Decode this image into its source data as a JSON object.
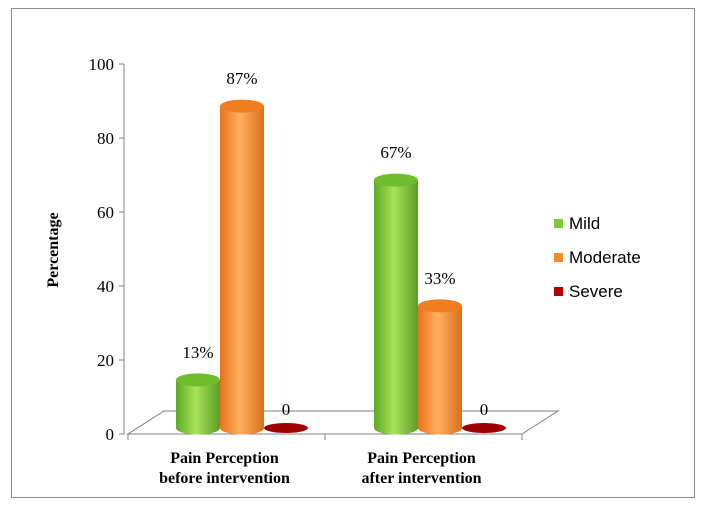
{
  "chart_data": {
    "type": "bar",
    "title": "",
    "xlabel": "",
    "ylabel": "Percentage",
    "ylim": [
      0,
      100
    ],
    "yticks": [
      0,
      20,
      40,
      60,
      80,
      100
    ],
    "categories": [
      [
        "Pain Perception",
        "before intervention"
      ],
      [
        "Pain Perception",
        "after intervention"
      ]
    ],
    "series": [
      {
        "name": "Mild",
        "color": "#7ec93c",
        "values": [
          13,
          67
        ],
        "labels": [
          "13%",
          "67%"
        ]
      },
      {
        "name": "Moderate",
        "color": "#f58a2a",
        "values": [
          87,
          33
        ],
        "labels": [
          "87%",
          "33%"
        ]
      },
      {
        "name": "Severe",
        "color": "#b40000",
        "values": [
          0,
          0
        ],
        "labels": [
          "0",
          "0"
        ]
      }
    ],
    "legend": "right",
    "grid": false,
    "style": "3d-cylinder"
  }
}
